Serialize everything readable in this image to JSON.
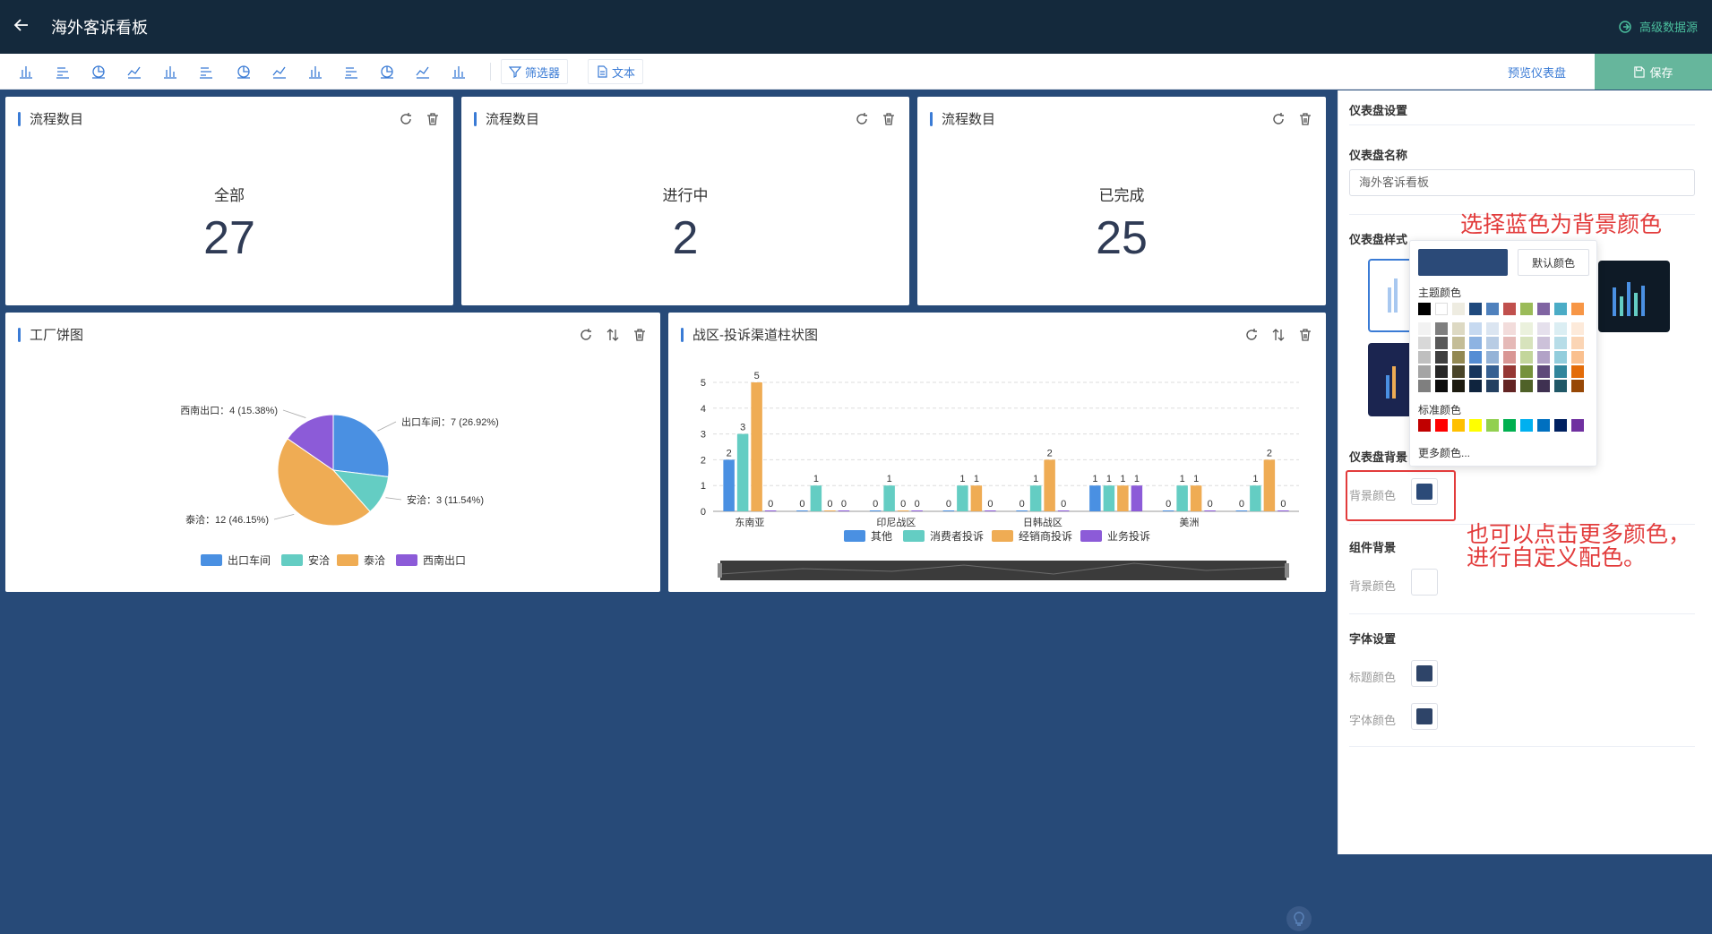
{
  "header": {
    "title": "海外客诉看板",
    "back_icon": "arrow-left-icon",
    "adv_label": "高级数据源",
    "adv_icon": "data-source-icon"
  },
  "toolbar": {
    "chart_icons": [
      "bar-chart-icon",
      "horizontal-bar-icon",
      "pie-chart-icon",
      "area-chart-icon",
      "radar-chart-icon",
      "list-chart-icon",
      "table-icon",
      "number-icon",
      "line-chart-icon",
      "funnel-icon",
      "column-chart-icon",
      "scatter-chart-icon",
      "combo-chart-icon"
    ],
    "filter_label": "筛选器",
    "text_label": "文本",
    "preview_label": "预览仪表盘",
    "save_label": "保存"
  },
  "kpi_cards": [
    {
      "title": "流程数目",
      "label": "全部",
      "value": "27"
    },
    {
      "title": "流程数目",
      "label": "进行中",
      "value": "2"
    },
    {
      "title": "流程数目",
      "label": "已完成",
      "value": "25"
    }
  ],
  "pie_card": {
    "title": "工厂饼图"
  },
  "bar_card": {
    "title": "战区-投诉渠道柱状图"
  },
  "chart_data": [
    {
      "type": "pie",
      "title": "工厂饼图",
      "categories": [
        "出口车间",
        "安洽",
        "泰洽",
        "西南出口"
      ],
      "values": [
        7,
        3,
        12,
        4
      ],
      "labels": [
        "出口车间：7 (26.92%)",
        "安洽：3 (11.54%)",
        "泰洽：12 (46.15%)",
        "西南出口：4 (15.38%)"
      ],
      "colors": [
        "#4a90e2",
        "#64cdc3",
        "#efac54",
        "#8c5bd8"
      ]
    },
    {
      "type": "bar",
      "title": "战区-投诉渠道柱状图",
      "categories": [
        "东南亚",
        "",
        "印尼战区",
        "",
        "日韩战区",
        "",
        "美洲",
        ""
      ],
      "tick_labels": [
        "东南亚",
        "印尼战区",
        "日韩战区",
        "美洲"
      ],
      "series": [
        {
          "name": "其他",
          "color": "#4a90e2",
          "values": [
            2,
            0,
            0,
            0,
            0,
            1,
            0,
            0
          ]
        },
        {
          "name": "消费者投诉",
          "color": "#64cdc3",
          "values": [
            3,
            1,
            1,
            1,
            1,
            1,
            1,
            1
          ]
        },
        {
          "name": "经销商投诉",
          "color": "#efac54",
          "values": [
            5,
            0,
            0,
            1,
            2,
            1,
            1,
            2
          ]
        },
        {
          "name": "业务投诉",
          "color": "#8c5bd8",
          "values": [
            0,
            0,
            0,
            0,
            0,
            1,
            0,
            0
          ]
        }
      ],
      "y_ticks": [
        "0",
        "1",
        "2",
        "3",
        "4",
        "5"
      ],
      "ylim": [
        0,
        5
      ]
    }
  ],
  "panel": {
    "section_title": "仪表盘设置",
    "name_label": "仪表盘名称",
    "name_value": "海外客诉看板",
    "style_label": "仪表盘样式",
    "bg_section": "仪表盘背景",
    "bg_color_label": "背景颜色",
    "bg_color": "#2b4a78",
    "comp_section": "组件背景",
    "comp_color_label": "背景颜色",
    "comp_color": "#ffffff",
    "font_section": "字体设置",
    "title_color_label": "标题颜色",
    "title_color": "#2e4468",
    "font_color_label": "字体颜色",
    "font_color": "#2e4468"
  },
  "picker": {
    "current_color": "#2b4a78",
    "default_label": "默认颜色",
    "theme_label": "主题颜色",
    "theme_top": [
      "#000000",
      "#ffffff",
      "#eeece1",
      "#1f497d",
      "#4f81bd",
      "#c0504d",
      "#9bbb59",
      "#8064a2",
      "#4bacc6",
      "#f79646"
    ],
    "theme_shades": [
      [
        "#f2f2f2",
        "#7f7f7f",
        "#ddd9c3",
        "#c6d9f0",
        "#dbe5f1",
        "#f2dcdb",
        "#ebf1dd",
        "#e5e0ec",
        "#dbeef3",
        "#fdeada"
      ],
      [
        "#d8d8d8",
        "#595959",
        "#c4bd97",
        "#8db3e2",
        "#b8cce4",
        "#e5b9b7",
        "#d7e3bc",
        "#ccc1d9",
        "#b7dde8",
        "#fbd5b5"
      ],
      [
        "#bfbfbf",
        "#3f3f3f",
        "#938953",
        "#548dd4",
        "#95b3d7",
        "#d99694",
        "#c3d69b",
        "#b2a2c7",
        "#92cddc",
        "#fac08f"
      ],
      [
        "#a5a5a5",
        "#262626",
        "#494429",
        "#17365d",
        "#366092",
        "#953734",
        "#76923c",
        "#5f497a",
        "#31859b",
        "#e36c09"
      ],
      [
        "#7f7f7f",
        "#0c0c0c",
        "#1d1b10",
        "#0f243e",
        "#244061",
        "#632423",
        "#4f6128",
        "#3f3151",
        "#205867",
        "#974806"
      ]
    ],
    "standard_label": "标准颜色",
    "standard": [
      "#c00000",
      "#ff0000",
      "#ffc000",
      "#ffff00",
      "#92d050",
      "#00b050",
      "#00b0f0",
      "#0070c0",
      "#002060",
      "#7030a0"
    ],
    "more_label": "更多颜色..."
  },
  "annotations": {
    "pick_blue": "选择蓝色为背景颜色",
    "more_colors_1": "也可以点击更多颜色，",
    "more_colors_2": "进行自定义配色。"
  }
}
